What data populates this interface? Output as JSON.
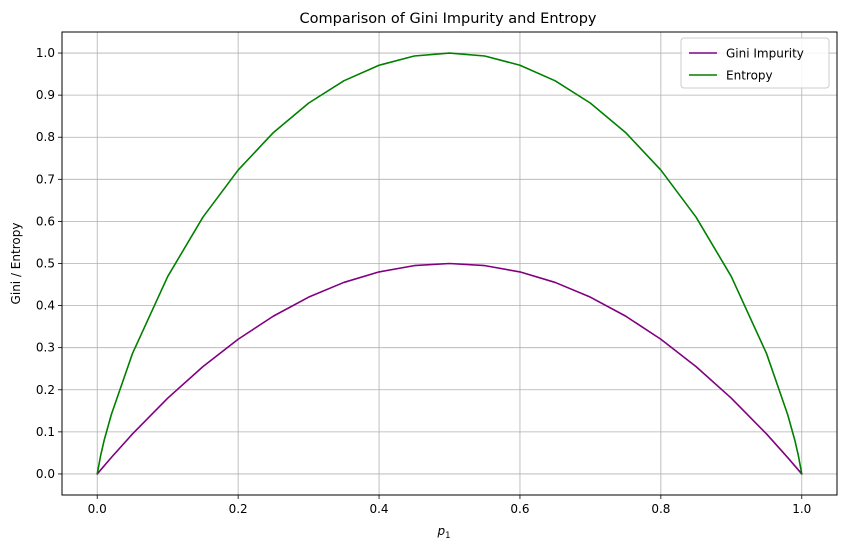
{
  "chart_data": {
    "type": "line",
    "title": "Comparison of Gini Impurity and Entropy",
    "xlabel": "p",
    "xlabel_subscript": "1",
    "ylabel": "Gini / Entropy",
    "xlim": [
      -0.05,
      1.05
    ],
    "ylim": [
      -0.05,
      1.05
    ],
    "xticks": [
      0.0,
      0.2,
      0.4,
      0.6,
      0.8,
      1.0
    ],
    "xtick_labels": [
      "0.0",
      "0.2",
      "0.4",
      "0.6",
      "0.8",
      "1.0"
    ],
    "yticks": [
      0.0,
      0.1,
      0.2,
      0.3,
      0.4,
      0.5,
      0.6,
      0.7,
      0.8,
      0.9,
      1.0
    ],
    "ytick_labels": [
      "0.0",
      "0.1",
      "0.2",
      "0.3",
      "0.4",
      "0.5",
      "0.6",
      "0.7",
      "0.8",
      "0.9",
      "1.0"
    ],
    "grid": true,
    "legend_position": "top-right",
    "series": [
      {
        "name": "Gini Impurity",
        "color": "#800080",
        "x": [
          0.0,
          0.02,
          0.05,
          0.1,
          0.15,
          0.2,
          0.25,
          0.3,
          0.35,
          0.4,
          0.45,
          0.5,
          0.55,
          0.6,
          0.65,
          0.7,
          0.75,
          0.8,
          0.85,
          0.9,
          0.95,
          0.98,
          1.0
        ],
        "y": [
          0.0,
          0.039,
          0.095,
          0.18,
          0.255,
          0.32,
          0.375,
          0.42,
          0.455,
          0.48,
          0.495,
          0.5,
          0.495,
          0.48,
          0.455,
          0.42,
          0.375,
          0.32,
          0.255,
          0.18,
          0.095,
          0.039,
          0.0
        ]
      },
      {
        "name": "Entropy",
        "color": "#008000",
        "x": [
          0.0,
          0.005,
          0.01,
          0.02,
          0.05,
          0.1,
          0.15,
          0.2,
          0.25,
          0.3,
          0.35,
          0.4,
          0.45,
          0.5,
          0.55,
          0.6,
          0.65,
          0.7,
          0.75,
          0.8,
          0.85,
          0.9,
          0.95,
          0.98,
          0.99,
          0.995,
          1.0
        ],
        "y": [
          0.0,
          0.045,
          0.081,
          0.141,
          0.286,
          0.469,
          0.61,
          0.722,
          0.811,
          0.881,
          0.934,
          0.971,
          0.993,
          1.0,
          0.993,
          0.971,
          0.934,
          0.881,
          0.811,
          0.722,
          0.61,
          0.469,
          0.286,
          0.141,
          0.081,
          0.045,
          0.0
        ]
      }
    ]
  }
}
